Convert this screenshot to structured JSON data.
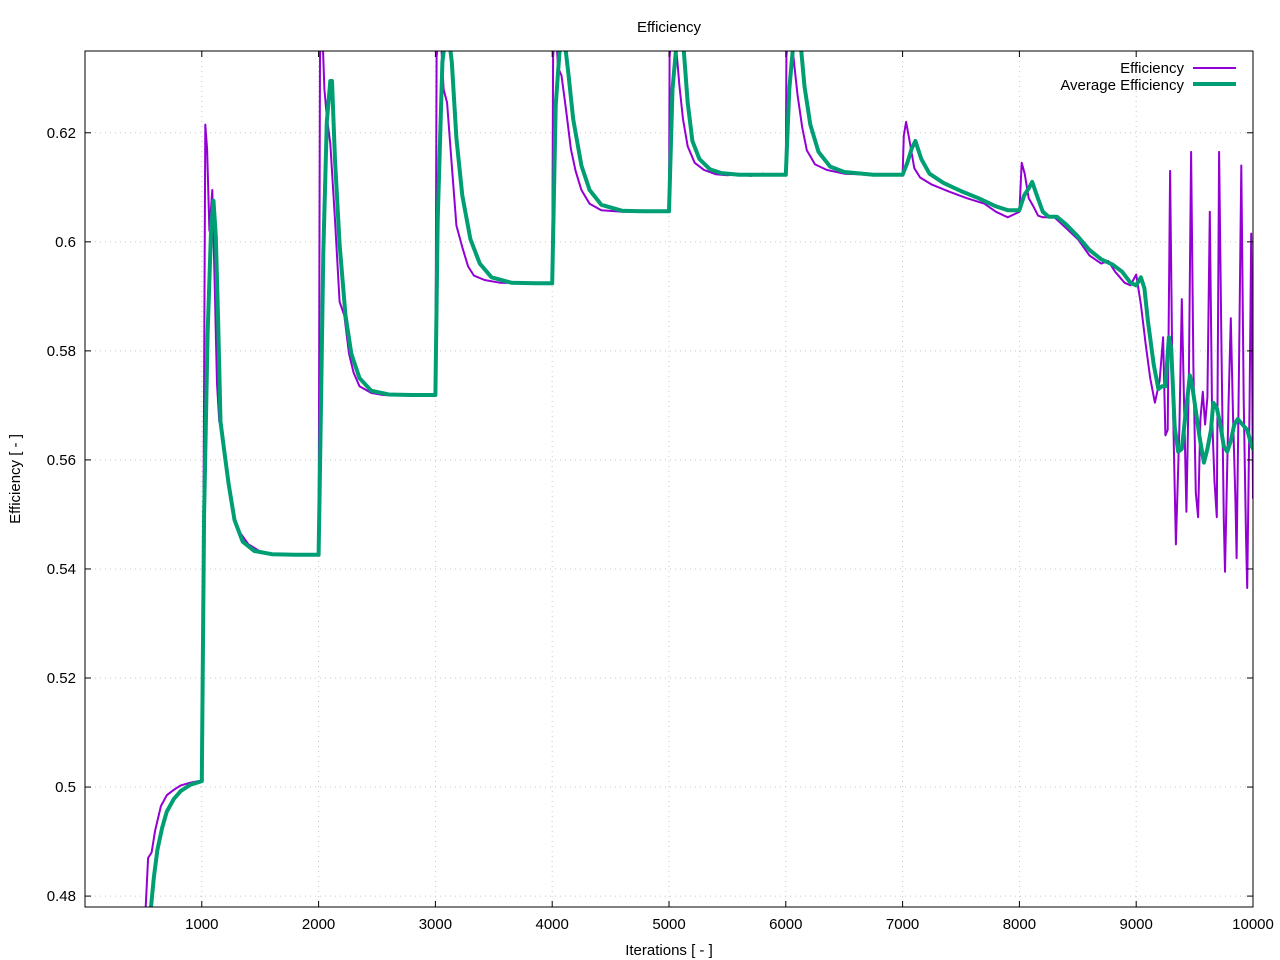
{
  "chart_data": {
    "type": "line",
    "title": "Efficiency",
    "xlabel": "Iterations [ - ]",
    "ylabel": "Efficiency [ - ]",
    "xlim": [
      0,
      10000
    ],
    "ylim": [
      0.478,
      0.635
    ],
    "xticks": [
      1000,
      2000,
      3000,
      4000,
      5000,
      6000,
      7000,
      8000,
      9000,
      10000
    ],
    "yticks": [
      0.48,
      0.5,
      0.52,
      0.54,
      0.56,
      0.58,
      0.6,
      0.62
    ],
    "xtick_labels": [
      "1000",
      "2000",
      "3000",
      "4000",
      "5000",
      "6000",
      "7000",
      "8000",
      "9000",
      "10000"
    ],
    "ytick_labels": [
      "0.48",
      "0.5",
      "0.52",
      "0.54",
      "0.56",
      "0.58",
      "0.6",
      "0.62"
    ],
    "grid": true,
    "legend_position": "top-right",
    "series": [
      {
        "name": "Efficiency",
        "color": "#9400d3",
        "points": [
          [
            520,
            0.478
          ],
          [
            540,
            0.487
          ],
          [
            570,
            0.488
          ],
          [
            600,
            0.492
          ],
          [
            650,
            0.4965
          ],
          [
            700,
            0.4985
          ],
          [
            760,
            0.4995
          ],
          [
            820,
            0.5003
          ],
          [
            900,
            0.5008
          ],
          [
            1000,
            0.5012
          ],
          [
            1015,
            0.555
          ],
          [
            1030,
            0.6215
          ],
          [
            1045,
            0.617
          ],
          [
            1065,
            0.602
          ],
          [
            1090,
            0.6095
          ],
          [
            1110,
            0.593
          ],
          [
            1130,
            0.574
          ],
          [
            1150,
            0.567
          ],
          [
            1170,
            0.5665
          ],
          [
            1200,
            0.561
          ],
          [
            1250,
            0.553
          ],
          [
            1300,
            0.5475
          ],
          [
            1400,
            0.5445
          ],
          [
            1500,
            0.5432
          ],
          [
            1600,
            0.5428
          ],
          [
            1750,
            0.5426
          ],
          [
            2000,
            0.5426
          ],
          [
            2012,
            0.6345
          ],
          [
            2030,
            0.64
          ],
          [
            2050,
            0.628
          ],
          [
            2070,
            0.623
          ],
          [
            2100,
            0.618
          ],
          [
            2140,
            0.604
          ],
          [
            2180,
            0.589
          ],
          [
            2220,
            0.5865
          ],
          [
            2260,
            0.5795
          ],
          [
            2300,
            0.576
          ],
          [
            2350,
            0.5735
          ],
          [
            2450,
            0.5723
          ],
          [
            2550,
            0.5719
          ],
          [
            2750,
            0.5718
          ],
          [
            3000,
            0.5718
          ],
          [
            3010,
            0.634
          ],
          [
            3040,
            0.64
          ],
          [
            3070,
            0.628
          ],
          [
            3100,
            0.6255
          ],
          [
            3140,
            0.614
          ],
          [
            3180,
            0.603
          ],
          [
            3230,
            0.599
          ],
          [
            3280,
            0.5955
          ],
          [
            3330,
            0.5938
          ],
          [
            3420,
            0.593
          ],
          [
            3550,
            0.5925
          ],
          [
            3800,
            0.5924
          ],
          [
            4000,
            0.5924
          ],
          [
            4008,
            0.634
          ],
          [
            4030,
            0.64
          ],
          [
            4050,
            0.632
          ],
          [
            4080,
            0.6305
          ],
          [
            4120,
            0.624
          ],
          [
            4160,
            0.617
          ],
          [
            4200,
            0.613
          ],
          [
            4250,
            0.6095
          ],
          [
            4320,
            0.607
          ],
          [
            4420,
            0.6058
          ],
          [
            4600,
            0.6055
          ],
          [
            4800,
            0.6055
          ],
          [
            5000,
            0.6055
          ],
          [
            5005,
            0.634
          ],
          [
            5030,
            0.64
          ],
          [
            5060,
            0.636
          ],
          [
            5090,
            0.6285
          ],
          [
            5120,
            0.6225
          ],
          [
            5160,
            0.6175
          ],
          [
            5220,
            0.6145
          ],
          [
            5300,
            0.6132
          ],
          [
            5400,
            0.6124
          ],
          [
            5500,
            0.6122
          ],
          [
            5600,
            0.6124
          ],
          [
            5700,
            0.6121
          ],
          [
            5800,
            0.6125
          ],
          [
            5900,
            0.6123
          ],
          [
            6000,
            0.6124
          ],
          [
            6005,
            0.634
          ],
          [
            6030,
            0.64
          ],
          [
            6060,
            0.635
          ],
          [
            6100,
            0.627
          ],
          [
            6140,
            0.621
          ],
          [
            6180,
            0.6168
          ],
          [
            6250,
            0.6142
          ],
          [
            6350,
            0.6132
          ],
          [
            6500,
            0.6125
          ],
          [
            6750,
            0.6123
          ],
          [
            7000,
            0.6123
          ],
          [
            7010,
            0.6195
          ],
          [
            7030,
            0.622
          ],
          [
            7060,
            0.6185
          ],
          [
            7100,
            0.6135
          ],
          [
            7150,
            0.6118
          ],
          [
            7250,
            0.6105
          ],
          [
            7400,
            0.6092
          ],
          [
            7550,
            0.608
          ],
          [
            7700,
            0.607
          ],
          [
            7800,
            0.6055
          ],
          [
            7900,
            0.6045
          ],
          [
            8000,
            0.6055
          ],
          [
            8020,
            0.6145
          ],
          [
            8045,
            0.6125
          ],
          [
            8080,
            0.608
          ],
          [
            8120,
            0.6065
          ],
          [
            8160,
            0.6048
          ],
          [
            8200,
            0.6045
          ],
          [
            8300,
            0.6045
          ],
          [
            8400,
            0.6025
          ],
          [
            8500,
            0.6005
          ],
          [
            8600,
            0.5975
          ],
          [
            8700,
            0.596
          ],
          [
            8760,
            0.5965
          ],
          [
            8820,
            0.5945
          ],
          [
            8900,
            0.5925
          ],
          [
            8950,
            0.592
          ],
          [
            9000,
            0.594
          ],
          [
            9040,
            0.5885
          ],
          [
            9080,
            0.5815
          ],
          [
            9120,
            0.575
          ],
          [
            9160,
            0.5705
          ],
          [
            9200,
            0.5745
          ],
          [
            9230,
            0.5825
          ],
          [
            9250,
            0.5645
          ],
          [
            9270,
            0.5655
          ],
          [
            9290,
            0.613
          ],
          [
            9310,
            0.575
          ],
          [
            9340,
            0.5445
          ],
          [
            9370,
            0.566
          ],
          [
            9390,
            0.5895
          ],
          [
            9410,
            0.57
          ],
          [
            9430,
            0.5505
          ],
          [
            9450,
            0.574
          ],
          [
            9470,
            0.6165
          ],
          [
            9490,
            0.577
          ],
          [
            9510,
            0.554
          ],
          [
            9530,
            0.5495
          ],
          [
            9550,
            0.5675
          ],
          [
            9570,
            0.5725
          ],
          [
            9590,
            0.5665
          ],
          [
            9610,
            0.5715
          ],
          [
            9630,
            0.6055
          ],
          [
            9650,
            0.568
          ],
          [
            9670,
            0.556
          ],
          [
            9690,
            0.5495
          ],
          [
            9710,
            0.6165
          ],
          [
            9730,
            0.58
          ],
          [
            9750,
            0.549
          ],
          [
            9760,
            0.5395
          ],
          [
            9790,
            0.57
          ],
          [
            9810,
            0.586
          ],
          [
            9830,
            0.5675
          ],
          [
            9850,
            0.552
          ],
          [
            9860,
            0.542
          ],
          [
            9880,
            0.577
          ],
          [
            9900,
            0.614
          ],
          [
            9920,
            0.571
          ],
          [
            9940,
            0.546
          ],
          [
            9950,
            0.5365
          ],
          [
            9970,
            0.569
          ],
          [
            9985,
            0.6015
          ],
          [
            10000,
            0.553
          ]
        ]
      },
      {
        "name": "Average Efficiency",
        "color": "#009e73",
        "points": [
          [
            565,
            0.478
          ],
          [
            590,
            0.4835
          ],
          [
            620,
            0.4885
          ],
          [
            660,
            0.4925
          ],
          [
            700,
            0.4955
          ],
          [
            760,
            0.4978
          ],
          [
            820,
            0.4993
          ],
          [
            900,
            0.5004
          ],
          [
            1000,
            0.5011
          ],
          [
            1020,
            0.55
          ],
          [
            1050,
            0.583
          ],
          [
            1080,
            0.6025
          ],
          [
            1100,
            0.6075
          ],
          [
            1120,
            0.601
          ],
          [
            1140,
            0.585
          ],
          [
            1160,
            0.567
          ],
          [
            1190,
            0.562
          ],
          [
            1230,
            0.5555
          ],
          [
            1280,
            0.549
          ],
          [
            1350,
            0.545
          ],
          [
            1450,
            0.5433
          ],
          [
            1600,
            0.5427
          ],
          [
            1800,
            0.5426
          ],
          [
            2000,
            0.5426
          ],
          [
            2015,
            0.563
          ],
          [
            2040,
            0.598
          ],
          [
            2070,
            0.622
          ],
          [
            2100,
            0.6295
          ],
          [
            2115,
            0.6295
          ],
          [
            2140,
            0.615
          ],
          [
            2180,
            0.5995
          ],
          [
            2230,
            0.5865
          ],
          [
            2280,
            0.5795
          ],
          [
            2350,
            0.575
          ],
          [
            2450,
            0.5727
          ],
          [
            2600,
            0.572
          ],
          [
            2800,
            0.5719
          ],
          [
            3000,
            0.5719
          ],
          [
            3020,
            0.604
          ],
          [
            3060,
            0.633
          ],
          [
            3100,
            0.64
          ],
          [
            3140,
            0.633
          ],
          [
            3180,
            0.619
          ],
          [
            3230,
            0.6085
          ],
          [
            3300,
            0.6005
          ],
          [
            3380,
            0.596
          ],
          [
            3480,
            0.5935
          ],
          [
            3650,
            0.5925
          ],
          [
            3850,
            0.5924
          ],
          [
            4000,
            0.5924
          ],
          [
            4030,
            0.625
          ],
          [
            4080,
            0.64
          ],
          [
            4100,
            0.638
          ],
          [
            4140,
            0.6305
          ],
          [
            4180,
            0.6225
          ],
          [
            4250,
            0.614
          ],
          [
            4320,
            0.6095
          ],
          [
            4420,
            0.6068
          ],
          [
            4600,
            0.6057
          ],
          [
            4800,
            0.6056
          ],
          [
            5000,
            0.6056
          ],
          [
            5030,
            0.628
          ],
          [
            5080,
            0.64
          ],
          [
            5120,
            0.637
          ],
          [
            5160,
            0.6255
          ],
          [
            5200,
            0.6185
          ],
          [
            5260,
            0.6152
          ],
          [
            5350,
            0.6133
          ],
          [
            5450,
            0.6126
          ],
          [
            5600,
            0.6123
          ],
          [
            5800,
            0.6123
          ],
          [
            6000,
            0.6123
          ],
          [
            6030,
            0.628
          ],
          [
            6080,
            0.64
          ],
          [
            6120,
            0.638
          ],
          [
            6160,
            0.6285
          ],
          [
            6210,
            0.6215
          ],
          [
            6280,
            0.6165
          ],
          [
            6380,
            0.6138
          ],
          [
            6500,
            0.6128
          ],
          [
            6750,
            0.6123
          ],
          [
            7000,
            0.6123
          ],
          [
            7040,
            0.6145
          ],
          [
            7080,
            0.6172
          ],
          [
            7110,
            0.6185
          ],
          [
            7160,
            0.6152
          ],
          [
            7230,
            0.6125
          ],
          [
            7350,
            0.6108
          ],
          [
            7500,
            0.6093
          ],
          [
            7650,
            0.608
          ],
          [
            7800,
            0.6065
          ],
          [
            7900,
            0.6058
          ],
          [
            8000,
            0.6058
          ],
          [
            8040,
            0.6085
          ],
          [
            8080,
            0.6098
          ],
          [
            8110,
            0.611
          ],
          [
            8150,
            0.6085
          ],
          [
            8200,
            0.6055
          ],
          [
            8250,
            0.6046
          ],
          [
            8320,
            0.6046
          ],
          [
            8400,
            0.6032
          ],
          [
            8500,
            0.601
          ],
          [
            8600,
            0.5985
          ],
          [
            8700,
            0.5968
          ],
          [
            8800,
            0.5958
          ],
          [
            8880,
            0.5945
          ],
          [
            8950,
            0.5925
          ],
          [
            9000,
            0.592
          ],
          [
            9040,
            0.5935
          ],
          [
            9070,
            0.5915
          ],
          [
            9100,
            0.5855
          ],
          [
            9150,
            0.5775
          ],
          [
            9190,
            0.573
          ],
          [
            9220,
            0.5735
          ],
          [
            9250,
            0.5735
          ],
          [
            9280,
            0.5825
          ],
          [
            9300,
            0.5805
          ],
          [
            9330,
            0.566
          ],
          [
            9360,
            0.5615
          ],
          [
            9390,
            0.562
          ],
          [
            9420,
            0.568
          ],
          [
            9460,
            0.5755
          ],
          [
            9480,
            0.5735
          ],
          [
            9510,
            0.569
          ],
          [
            9540,
            0.5645
          ],
          [
            9580,
            0.5595
          ],
          [
            9610,
            0.562
          ],
          [
            9640,
            0.5655
          ],
          [
            9660,
            0.5705
          ],
          [
            9690,
            0.5695
          ],
          [
            9720,
            0.5665
          ],
          [
            9750,
            0.5625
          ],
          [
            9780,
            0.5615
          ],
          [
            9810,
            0.5635
          ],
          [
            9840,
            0.5665
          ],
          [
            9870,
            0.5675
          ],
          [
            9910,
            0.5665
          ],
          [
            9950,
            0.5655
          ],
          [
            9990,
            0.5625
          ],
          [
            10000,
            0.562
          ]
        ]
      }
    ]
  }
}
